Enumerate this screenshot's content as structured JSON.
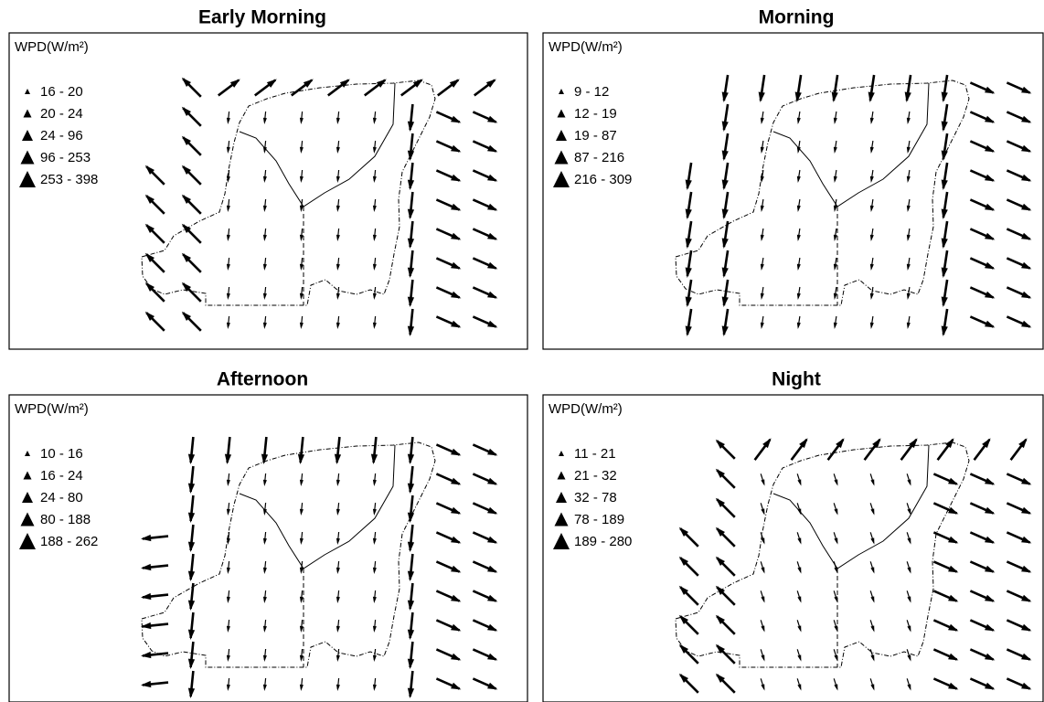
{
  "panels": [
    {
      "title": "Early Morning",
      "legend_title": "WPD(W/m²)",
      "legend": [
        "16 - 20",
        "20 - 24",
        "24 - 96",
        "96 - 253",
        "253 - 398"
      ]
    },
    {
      "title": "Morning",
      "legend_title": "WPD(W/m²)",
      "legend": [
        "9 - 12",
        "12 - 19",
        "19 - 87",
        "87 - 216",
        "216 - 309"
      ]
    },
    {
      "title": "Afternoon",
      "legend_title": "WPD(W/m²)",
      "legend": [
        "10 - 16",
        "16 - 24",
        "24 - 80",
        "80 - 188",
        "188 - 262"
      ]
    },
    {
      "title": "Night",
      "legend_title": "WPD(W/m²)",
      "legend": [
        "11 - 21",
        "21 - 32",
        "32 - 78",
        "78 - 189",
        "189 - 280"
      ]
    }
  ]
}
